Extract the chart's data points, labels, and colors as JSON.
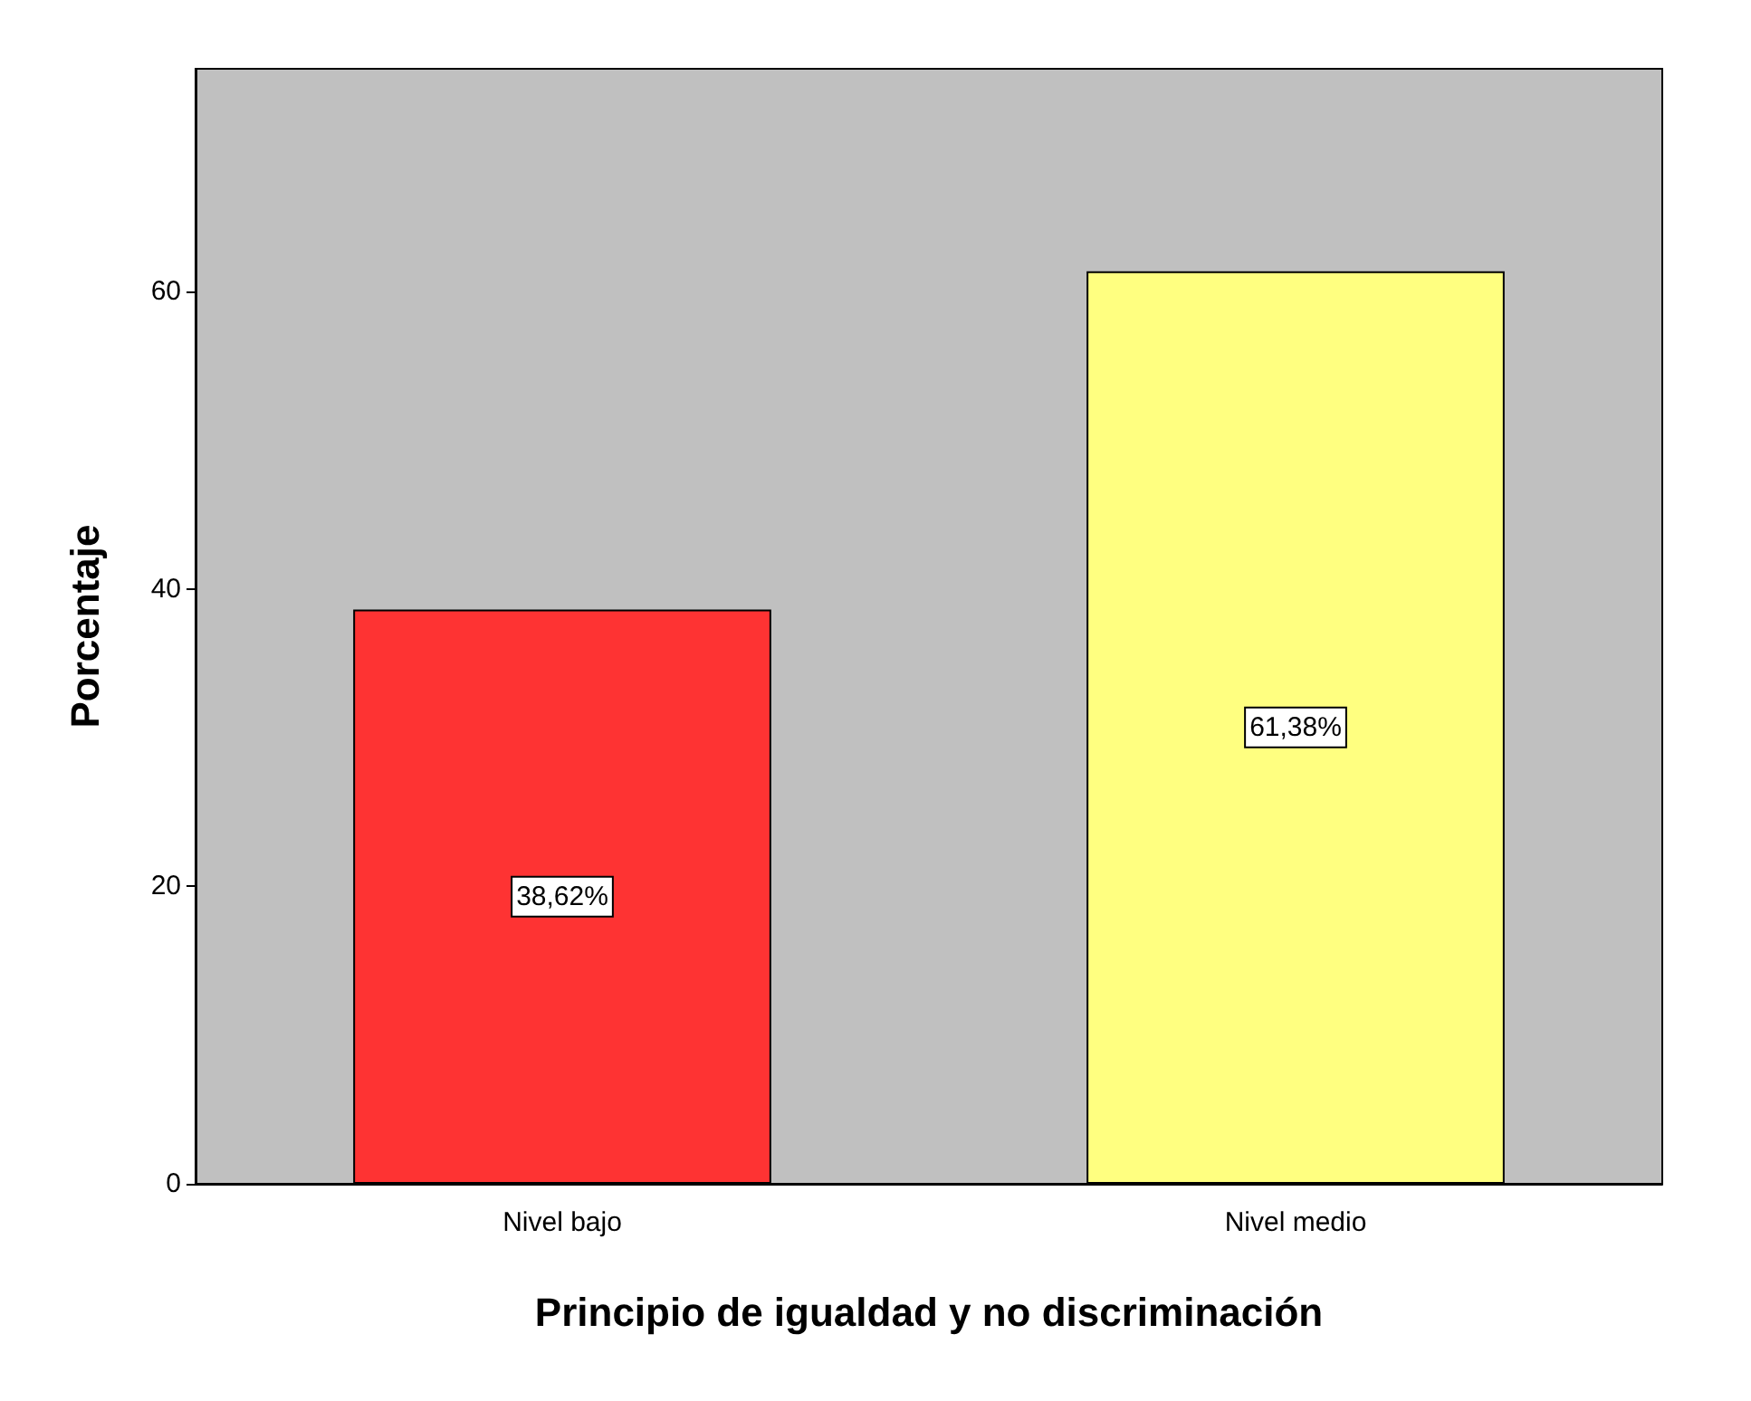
{
  "chart_data": {
    "type": "bar",
    "xlabel": "Principio de igualdad y no discriminación",
    "ylabel": "Porcentaje",
    "categories": [
      "Nivel bajo",
      "Nivel medio"
    ],
    "values": [
      38.62,
      61.38
    ],
    "colors": [
      "#fe3333",
      "#ffff80"
    ],
    "value_labels": [
      "38,62%",
      "61,38%"
    ],
    "ylim": [
      0,
      75
    ],
    "yticks": [
      0,
      20,
      40,
      60
    ],
    "grid": false
  }
}
